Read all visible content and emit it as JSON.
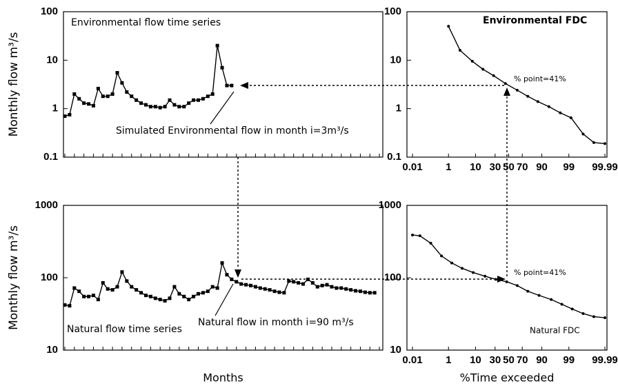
{
  "chart_data": [
    {
      "type": "line",
      "title": "Environmental flow time series",
      "ylabel": "Monthly flow m³/s",
      "annotation": "Simulated Environmental flow in month i=3m³/s",
      "yscale": "log",
      "color": "#000000",
      "ylim": [
        0.1,
        100
      ],
      "yticks": [
        0.1,
        1,
        10,
        100
      ],
      "values": [
        0.7,
        0.75,
        2,
        1.6,
        1.3,
        1.25,
        1.15,
        2.6,
        1.8,
        1.8,
        2,
        5.5,
        3.4,
        2.2,
        1.8,
        1.5,
        1.3,
        1.2,
        1.1,
        1.1,
        1.05,
        1.1,
        1.5,
        1.2,
        1.1,
        1.1,
        1.3,
        1.5,
        1.5,
        1.6,
        1.8,
        2,
        20,
        7,
        3,
        3
      ]
    },
    {
      "type": "line",
      "title": "Natural flow time series",
      "ylabel": "Monthly flow m³/s",
      "xlabel": "Months",
      "annotation": "Natural flow in month i=90 m³/s",
      "yscale": "log",
      "color": "#000000",
      "ylim": [
        10,
        1000
      ],
      "yticks": [
        10,
        100,
        1000
      ],
      "values": [
        42,
        41,
        72,
        65,
        55,
        55,
        57,
        50,
        85,
        70,
        68,
        75,
        120,
        90,
        75,
        68,
        62,
        57,
        55,
        52,
        50,
        48,
        52,
        75,
        60,
        55,
        50,
        55,
        60,
        62,
        65,
        75,
        72,
        160,
        110,
        95,
        88,
        82,
        80,
        78,
        75,
        72,
        70,
        68,
        65,
        63,
        62,
        90,
        88,
        85,
        82,
        95,
        85,
        75,
        78,
        80,
        75,
        72,
        72,
        70,
        68,
        66,
        65,
        63,
        62,
        62
      ]
    },
    {
      "type": "line",
      "title": "Environmental FDC",
      "annotation": "% point=41%",
      "yscale": "log",
      "xscale": "probability",
      "color": "#000000",
      "xlim": [
        0.01,
        99.99
      ],
      "xticks": [
        0.01,
        1,
        10,
        30,
        50,
        70,
        90,
        99,
        99.99
      ],
      "ylim": [
        0.1,
        100
      ],
      "yticks": [
        0.1,
        1,
        10,
        100
      ],
      "x": [
        1,
        3,
        8,
        16,
        28,
        45,
        63,
        77,
        87,
        94,
        97.7,
        99.2,
        99.8,
        99.95,
        99.99
      ],
      "values": [
        50,
        16,
        9.5,
        6.5,
        4.8,
        3.3,
        2.4,
        1.8,
        1.4,
        1.1,
        0.82,
        0.65,
        0.3,
        0.2,
        0.19
      ]
    },
    {
      "type": "line",
      "title": "Natural FDC",
      "annotation": "% point=41%",
      "xlabel": "%Time exceeded",
      "yscale": "log",
      "xscale": "probability",
      "color": "#000000",
      "xlim": [
        0.01,
        99.99
      ],
      "xticks": [
        0.01,
        1,
        10,
        30,
        50,
        70,
        90,
        99,
        99.99
      ],
      "ylim": [
        10,
        1000
      ],
      "yticks": [
        10,
        100,
        1000
      ],
      "x": [
        0.01,
        0.03,
        0.13,
        0.47,
        1.4,
        3.6,
        8.5,
        18,
        31,
        47,
        63,
        77,
        88,
        95,
        98,
        99.3,
        99.8,
        99.95,
        99.99
      ],
      "values": [
        390,
        380,
        300,
        200,
        160,
        135,
        118,
        105,
        95,
        88,
        78,
        65,
        57,
        50,
        43,
        37,
        32,
        29,
        28
      ]
    }
  ]
}
